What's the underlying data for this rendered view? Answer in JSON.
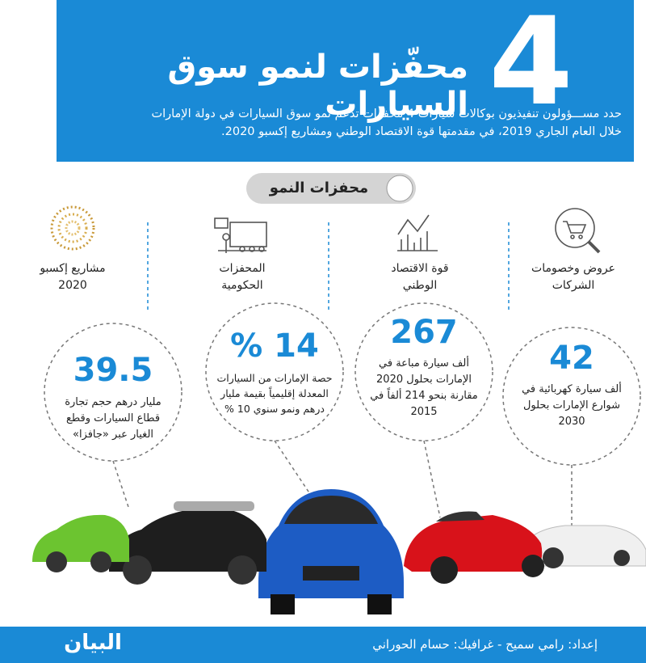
{
  "header": {
    "big_number": "4",
    "title": "محفّزات لنمو سوق السيارات",
    "intro": "حدد مســـؤولون تنفيذيون بوكالات سيارات 4 محفزات تدعم نمو سوق السيارات في دولة الإمارات خلال العام الجاري 2019، في مقدمتها قوة الاقتصاد الوطني ومشاريع إكسبو 2020."
  },
  "section_label": "محفزات النمو",
  "drivers": [
    "عروض وخصومات الشركات",
    "قوة الاقتصاد الوطني",
    "المحفزات الحكومية",
    "مشاريع إكسبو 2020"
  ],
  "stats": [
    {
      "number": "42",
      "text": "ألف سيارة كهربائية في شوارع الإمارات بحلول 2030"
    },
    {
      "number": "267",
      "text": "ألف سيارة مباعة في الإمارات بحلول 2020 مقارنة بنحو 214 ألفاً في 2015"
    },
    {
      "number": "14 %",
      "text": "حصة الإمارات من السيارات المعدلة إقليمياً بقيمة مليار درهم ونمو سنوي 10 %"
    },
    {
      "number": "39.5",
      "text": "مليار درهم حجم تجارة قطاع السيارات وقطع الغيار عبر «جافزا»"
    }
  ],
  "footer": {
    "credits": "إعداد: رامي سميح - غرافيك: حسام الحوراني",
    "logo": "البيان"
  }
}
